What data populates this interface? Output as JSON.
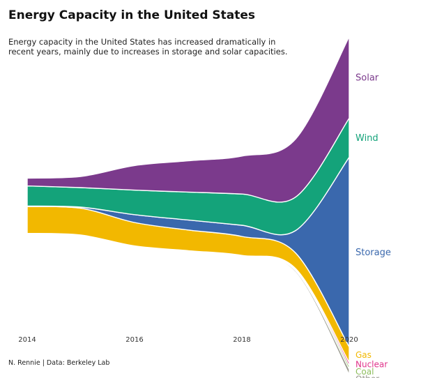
{
  "title": "Energy Capacity in the United States",
  "subtitle": "Energy capacity in the United States has increased dramatically in recent years, mainly due to increases in storage and solar capacities.",
  "caption": "N. Rennie | Data: Berkeley Lab",
  "chart_data": {
    "type": "area",
    "subtype": "streamgraph",
    "x": [
      2014,
      2015,
      2016,
      2017,
      2018,
      2019,
      2020
    ],
    "xticks": [
      "2014",
      "2016",
      "2018",
      "2020"
    ],
    "xlim": [
      2014,
      2020
    ],
    "grid": false,
    "legend": "direct labels at right end",
    "series": [
      {
        "name": "Other",
        "color": "#9a9a8e",
        "values": [
          0,
          0,
          0,
          0,
          0,
          3,
          10
        ]
      },
      {
        "name": "Coal",
        "color": "#8dbd5c",
        "values": [
          0,
          0,
          0,
          0,
          0,
          2,
          6
        ]
      },
      {
        "name": "Nuclear",
        "color": "#e0338a",
        "values": [
          0,
          0,
          0,
          0,
          0,
          2,
          6
        ]
      },
      {
        "name": "Gas",
        "color": "#f2b800",
        "values": [
          48,
          48,
          42,
          37,
          34,
          28,
          28
        ]
      },
      {
        "name": "Storage",
        "color": "#3a68ad",
        "values": [
          1,
          2,
          14,
          18,
          20,
          40,
          340
        ]
      },
      {
        "name": "Wind",
        "color": "#14a37a",
        "values": [
          36,
          35,
          44,
          50,
          56,
          60,
          70
        ]
      },
      {
        "name": "Solar",
        "color": "#7b3a8c",
        "values": [
          14,
          20,
          44,
          56,
          68,
          104,
          146
        ]
      }
    ]
  }
}
